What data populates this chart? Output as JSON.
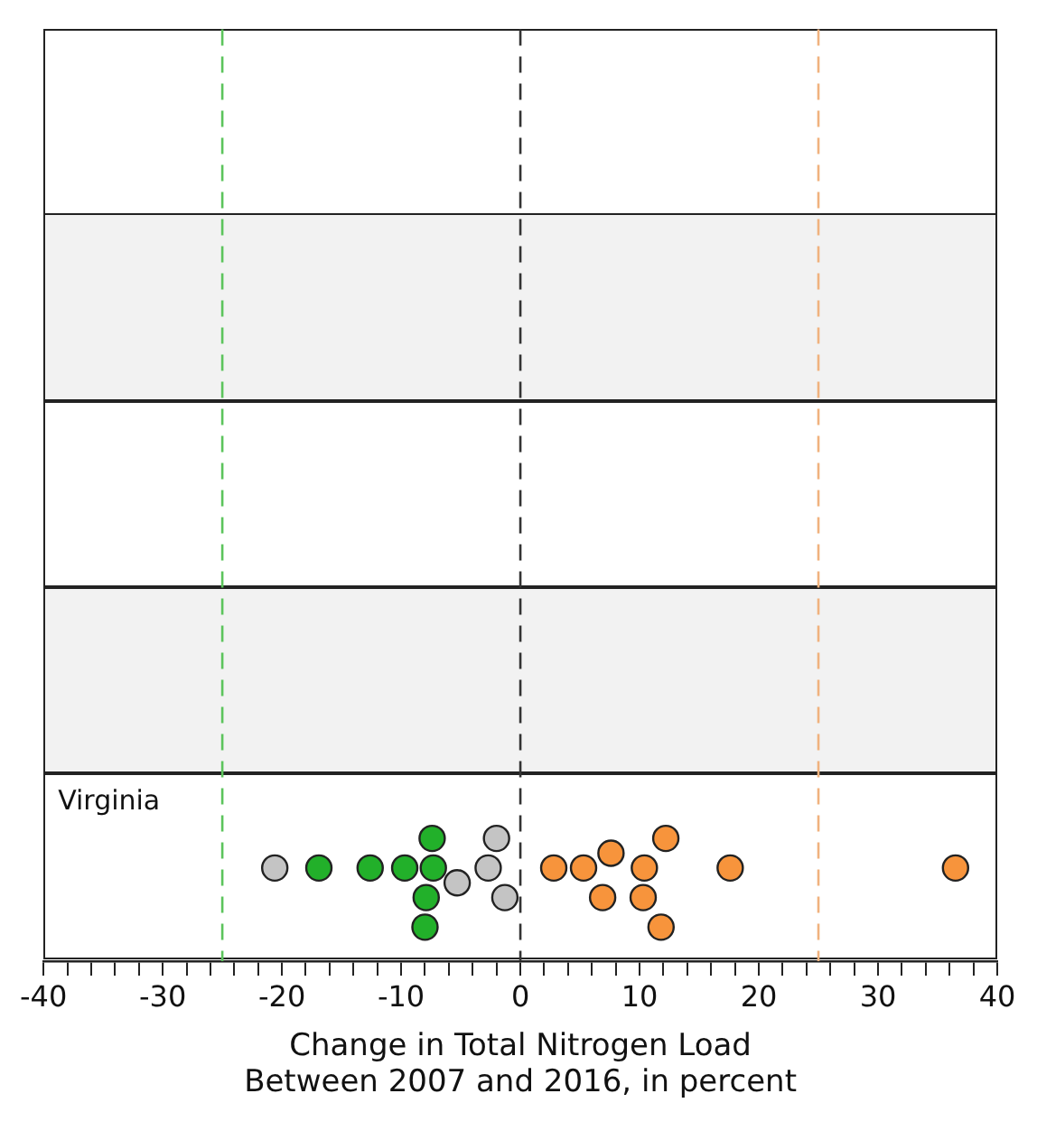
{
  "chart_data": {
    "type": "scatter",
    "orientation": "horizontal",
    "xlabel": "Change in Total Nitrogen Load\nBetween 2007 and 2016, in percent",
    "categories": [
      null,
      null,
      null,
      null,
      "Virginia"
    ],
    "xlim": [
      -40,
      40
    ],
    "xticks": [
      -40,
      {
        "value": -38,
        "label": null
      },
      {
        "value": -36,
        "label": null
      },
      {
        "value": -34,
        "label": null
      },
      {
        "value": -32,
        "label": null
      },
      -30,
      {
        "value": -28,
        "label": null
      },
      {
        "value": -26,
        "label": null
      },
      {
        "value": -24,
        "label": null
      },
      {
        "value": -22,
        "label": null
      },
      -20,
      {
        "value": -18,
        "label": null
      },
      {
        "value": -16,
        "label": null
      },
      {
        "value": -14,
        "label": null
      },
      {
        "value": -12,
        "label": null
      },
      -10,
      {
        "value": -8,
        "label": null
      },
      {
        "value": -6,
        "label": null
      },
      {
        "value": -4,
        "label": null
      },
      {
        "value": -2,
        "label": null
      },
      0,
      {
        "value": 2,
        "label": null
      },
      {
        "value": 4,
        "label": null
      },
      {
        "value": 6,
        "label": null
      },
      {
        "value": 8,
        "label": null
      },
      10,
      {
        "value": 12,
        "label": null
      },
      {
        "value": 14,
        "label": null
      },
      {
        "value": 16,
        "label": null
      },
      {
        "value": 18,
        "label": null
      },
      20,
      {
        "value": 22,
        "label": null
      },
      {
        "value": 24,
        "label": null
      },
      {
        "value": 26,
        "label": null
      },
      {
        "value": 28,
        "label": null
      },
      30,
      {
        "value": 32,
        "label": null
      },
      {
        "value": 34,
        "label": null
      },
      {
        "value": 36,
        "label": null
      },
      {
        "value": 38,
        "label": null
      },
      40
    ],
    "legend": false,
    "marker": "circle",
    "series": [
      {
        "color": "#22b02a",
        "x": [
          "Virginia",
          "Virginia",
          "Virginia",
          "Virginia",
          "Virginia",
          "Virginia",
          "Virginia"
        ],
        "values": [
          -16.9,
          -12.6,
          -9.7,
          -7.3,
          -7.9,
          -7.4,
          -8.0
        ]
      },
      {
        "color": "#c4c4c4",
        "x": [
          "Virginia",
          "Virginia",
          "Virginia",
          "Virginia",
          "Virginia"
        ],
        "values": [
          -20.6,
          -5.3,
          -2.7,
          -1.3,
          -2.0
        ]
      },
      {
        "color": "#f7943c",
        "x": [
          "Virginia",
          "Virginia",
          "Virginia",
          "Virginia",
          "Virginia",
          "Virginia",
          "Virginia",
          "Virginia",
          "Virginia",
          "Virginia"
        ],
        "values": [
          2.8,
          5.3,
          6.9,
          7.6,
          10.4,
          10.3,
          12.2,
          11.8,
          17.6,
          36.5
        ]
      }
    ],
    "ref_lines": [
      {
        "axis": "x",
        "value": -25,
        "color": "#5cc45c",
        "line_style": "dashed"
      },
      {
        "axis": "x",
        "value": 0,
        "color": "#333333",
        "line_style": "dashed"
      },
      {
        "axis": "x",
        "value": 25,
        "color": "#f0b27e",
        "line_style": "dashed"
      }
    ]
  }
}
